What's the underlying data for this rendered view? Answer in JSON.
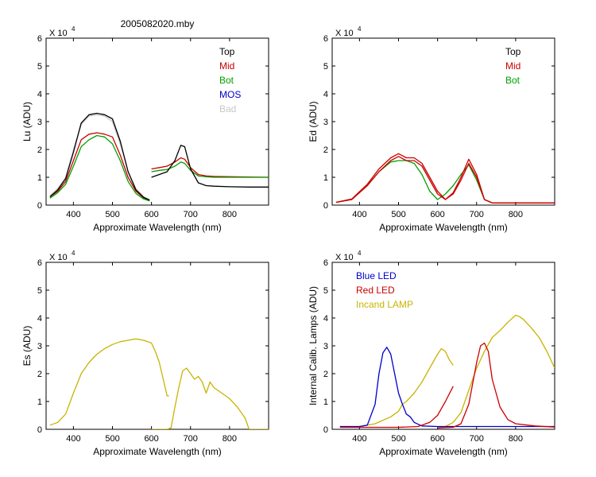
{
  "figure_title": "2005082020.mby",
  "chart_data": [
    {
      "type": "line",
      "xlabel": "Approximate Wavelength (nm)",
      "ylabel": "Lu (ADU)",
      "exponent_label": "X 10",
      "exponent_power": "4",
      "xlim": [
        330,
        900
      ],
      "ylim": [
        0,
        60000
      ],
      "xticks": [
        400,
        500,
        600,
        700,
        800
      ],
      "yticks": [
        0,
        1,
        2,
        3,
        4,
        5,
        6
      ],
      "legend_position": "top-right",
      "legend": [
        {
          "name": "Top",
          "color": "#000000"
        },
        {
          "name": "Mid",
          "color": "#cc0000"
        },
        {
          "name": "Bot",
          "color": "#00a000"
        },
        {
          "name": "MOS",
          "color": "#0000cc"
        },
        {
          "name": "Bad",
          "color": "#c8c8c8"
        }
      ],
      "series": [
        {
          "color": "#c8c8c8",
          "x": [
            340,
            360,
            380,
            400,
            420,
            440,
            460,
            480,
            500,
            520,
            540,
            560,
            580,
            595
          ],
          "y": [
            3500,
            6000,
            10000,
            20000,
            29000,
            32000,
            32500,
            32000,
            30000,
            22000,
            12000,
            6000,
            3000,
            2000
          ]
        },
        {
          "color": "#cc0000",
          "x": [
            340,
            360,
            380,
            400,
            420,
            440,
            460,
            480,
            500,
            520,
            540,
            560,
            580,
            595
          ],
          "y": [
            3000,
            5000,
            8500,
            16000,
            23500,
            25500,
            26000,
            25500,
            24500,
            18000,
            10000,
            5000,
            2600,
            1700
          ]
        },
        {
          "color": "#00a000",
          "x": [
            340,
            360,
            380,
            400,
            420,
            440,
            460,
            480,
            500,
            520,
            540,
            560,
            580,
            595
          ],
          "y": [
            2500,
            4500,
            7500,
            14000,
            21000,
            23500,
            25000,
            24500,
            22000,
            16000,
            8500,
            4200,
            2200,
            1500
          ]
        },
        {
          "color": "#000000",
          "x": [
            340,
            360,
            380,
            400,
            420,
            440,
            460,
            480,
            500,
            520,
            540,
            560,
            580,
            595
          ],
          "y": [
            3000,
            5500,
            9500,
            19000,
            29500,
            32500,
            33000,
            32500,
            31000,
            23000,
            12000,
            5500,
            2800,
            1800
          ]
        },
        {
          "color": "#cc0000",
          "x": [
            600,
            620,
            640,
            660,
            675,
            685,
            700,
            720,
            740,
            760,
            800,
            850,
            900
          ],
          "y": [
            13000,
            13500,
            14000,
            15500,
            17000,
            16500,
            13500,
            11000,
            10500,
            10300,
            10200,
            10100,
            10000
          ]
        },
        {
          "color": "#00a000",
          "x": [
            600,
            620,
            640,
            660,
            675,
            685,
            700,
            720,
            740,
            760,
            800,
            850,
            900
          ],
          "y": [
            12000,
            12500,
            12800,
            14000,
            15500,
            15000,
            12500,
            10500,
            10200,
            10000,
            10000,
            10000,
            10000
          ]
        },
        {
          "color": "#000000",
          "x": [
            600,
            620,
            640,
            660,
            675,
            685,
            700,
            720,
            740,
            760,
            800,
            850,
            900
          ],
          "y": [
            10000,
            11000,
            12000,
            16000,
            21500,
            21000,
            13000,
            8000,
            7000,
            6800,
            6600,
            6500,
            6500
          ]
        }
      ]
    },
    {
      "type": "line",
      "xlabel": "Approximate Wavelength (nm)",
      "ylabel": "Ed  (ADU)",
      "exponent_label": "X 10",
      "exponent_power": "4",
      "xlim": [
        330,
        900
      ],
      "ylim": [
        0,
        60000
      ],
      "xticks": [
        400,
        500,
        600,
        700,
        800
      ],
      "yticks": [
        0,
        1,
        2,
        3,
        4,
        5,
        6
      ],
      "legend_position": "top-right",
      "legend": [
        {
          "name": "Top",
          "color": "#000000"
        },
        {
          "name": "Mid",
          "color": "#cc0000"
        },
        {
          "name": "Bot",
          "color": "#00a000"
        }
      ],
      "series": [
        {
          "color": "#00a000",
          "x": [
            340,
            380,
            420,
            450,
            480,
            500,
            520,
            540,
            560,
            580,
            600,
            620,
            640,
            660,
            680,
            700,
            720,
            740,
            800,
            900
          ],
          "y": [
            1000,
            2000,
            7000,
            12000,
            15500,
            16000,
            16000,
            15000,
            11000,
            5000,
            2000,
            4000,
            7000,
            11000,
            14500,
            9000,
            2000,
            800,
            800,
            800
          ]
        },
        {
          "color": "#cc0000",
          "x": [
            340,
            380,
            420,
            450,
            480,
            500,
            520,
            540,
            560,
            580,
            600,
            620,
            640,
            660,
            680,
            700,
            720,
            740,
            800,
            900
          ],
          "y": [
            1000,
            2200,
            7500,
            13000,
            17000,
            18500,
            17000,
            17000,
            15000,
            10000,
            5000,
            2000,
            4500,
            10000,
            16500,
            11000,
            2000,
            800,
            800,
            800
          ]
        },
        {
          "color": "#cc0000",
          "x": [
            340,
            380,
            420,
            450,
            480,
            500,
            520,
            540,
            560,
            580,
            600,
            620,
            640,
            660,
            680,
            700,
            720,
            740,
            800,
            900
          ],
          "y": [
            1000,
            2000,
            7000,
            12000,
            16000,
            17500,
            16000,
            16000,
            14000,
            9000,
            4000,
            2000,
            4000,
            9000,
            15000,
            10000,
            2000,
            800,
            800,
            800
          ]
        }
      ]
    },
    {
      "type": "line",
      "xlabel": "Approximate Wavelength (nm)",
      "ylabel": "Es  (ADU)",
      "exponent_label": "X 10",
      "exponent_power": "4",
      "xlim": [
        330,
        900
      ],
      "ylim": [
        0,
        60000
      ],
      "xticks": [
        400,
        500,
        600,
        700,
        800
      ],
      "yticks": [
        0,
        1,
        2,
        3,
        4,
        5,
        6
      ],
      "legend": [],
      "series": [
        {
          "color": "#c8b400",
          "x": [
            340,
            360,
            380,
            400,
            420,
            440,
            460,
            480,
            500,
            520,
            540,
            560,
            580,
            600,
            610,
            620,
            640,
            645
          ],
          "y": [
            1500,
            2500,
            5500,
            13000,
            20000,
            24000,
            27000,
            29000,
            30500,
            31500,
            32000,
            32500,
            32000,
            31000,
            28000,
            24000,
            12000,
            12000
          ]
        },
        {
          "color": "#c8b400",
          "x": [
            600,
            640,
            650,
            660,
            670,
            680,
            690,
            700,
            710,
            720,
            730,
            740,
            750,
            760,
            770,
            780,
            800,
            820,
            840,
            850,
            900
          ],
          "y": [
            0,
            0,
            500,
            8000,
            15000,
            21000,
            22000,
            20000,
            18000,
            19000,
            17000,
            13000,
            17000,
            15000,
            14000,
            13000,
            11000,
            8000,
            4000,
            0,
            0
          ]
        }
      ]
    },
    {
      "type": "line",
      "xlabel": "Approximate Wavelength (nm)",
      "ylabel": "Internal Calib. Lamps (ADU)",
      "exponent_label": "X 10",
      "exponent_power": "4",
      "xlim": [
        330,
        900
      ],
      "ylim": [
        0,
        60000
      ],
      "xticks": [
        400,
        500,
        600,
        700,
        800
      ],
      "yticks": [
        0,
        1,
        2,
        3,
        4,
        5,
        6
      ],
      "legend_position": "top-left",
      "legend": [
        {
          "name": "Blue LED",
          "color": "#0000cc"
        },
        {
          "name": "Red LED",
          "color": "#cc0000"
        },
        {
          "name": "Incand LAMP",
          "color": "#c8b400"
        }
      ],
      "series": [
        {
          "color": "#c8b400",
          "x": [
            350,
            400,
            440,
            480,
            500,
            510,
            520,
            540,
            560,
            580,
            600,
            610,
            620,
            630,
            640
          ],
          "y": [
            800,
            1000,
            2000,
            4500,
            6500,
            9000,
            10000,
            13000,
            17000,
            22000,
            27000,
            29000,
            28000,
            25000,
            23000
          ]
        },
        {
          "color": "#c8b400",
          "x": [
            600,
            620,
            640,
            660,
            680,
            700,
            720,
            740,
            760,
            780,
            800,
            810,
            820,
            840,
            860,
            880,
            900
          ],
          "y": [
            500,
            1000,
            2500,
            6000,
            14000,
            22000,
            28000,
            33000,
            35500,
            38500,
            41000,
            40500,
            39500,
            36500,
            33000,
            28000,
            22000
          ]
        },
        {
          "color": "#0000cc",
          "x": [
            350,
            400,
            420,
            440,
            450,
            460,
            470,
            480,
            490,
            500,
            510,
            520,
            530,
            540,
            560,
            600,
            700,
            800,
            900
          ],
          "y": [
            1000,
            1000,
            1500,
            9000,
            20000,
            27500,
            29500,
            27000,
            20000,
            13000,
            9000,
            5500,
            4500,
            2500,
            1200,
            1000,
            1000,
            1000,
            1000
          ]
        },
        {
          "color": "#cc0000",
          "x": [
            350,
            500,
            550,
            580,
            600,
            620,
            640
          ],
          "y": [
            700,
            700,
            1000,
            2500,
            5000,
            10000,
            15500
          ]
        },
        {
          "color": "#cc0000",
          "x": [
            600,
            640,
            660,
            680,
            700,
            710,
            720,
            730,
            740,
            760,
            780,
            800,
            850,
            900
          ],
          "y": [
            500,
            700,
            2000,
            9000,
            24000,
            30000,
            31000,
            28000,
            18000,
            8000,
            3500,
            2000,
            1200,
            800
          ]
        }
      ]
    }
  ]
}
